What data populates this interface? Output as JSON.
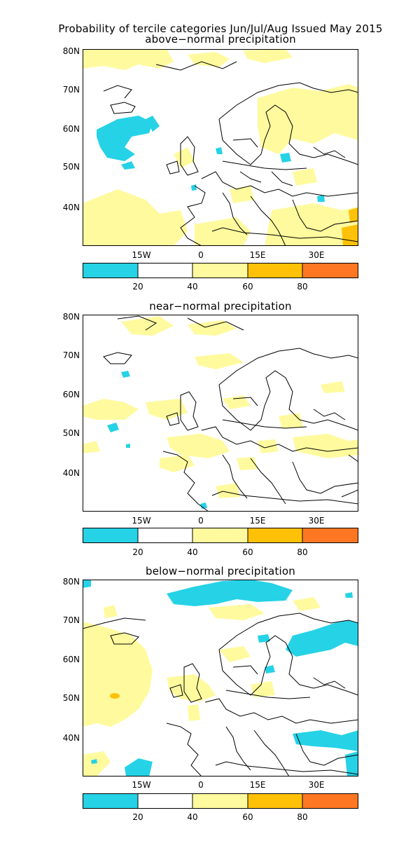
{
  "title": "Probability of tercile categories Jun/Jul/Aug Issued May 2015",
  "lat_labels": [
    "80N",
    "70N",
    "60N",
    "50N",
    "40N"
  ],
  "lon_labels": [
    "15W",
    "0",
    "15E",
    "30E"
  ],
  "colorbar": {
    "tick_labels": [
      "20",
      "40",
      "60",
      "80"
    ],
    "colors": [
      "#26d2e6",
      "#ffffff",
      "#fffa9e",
      "#ffc107",
      "#ff7722"
    ]
  },
  "panels": [
    {
      "title": "above−normal precipitation"
    },
    {
      "title": "near−normal precipitation"
    },
    {
      "title": "below−normal precipitation"
    }
  ]
}
